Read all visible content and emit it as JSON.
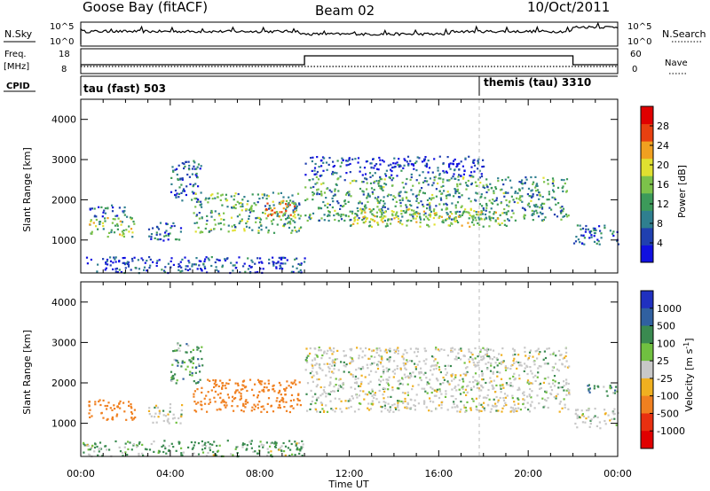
{
  "header": {
    "station": "Goose Bay (fitACF)",
    "beam": "Beam 02",
    "date": "10/Oct/2011"
  },
  "small_panels": {
    "nsky_label": "N.Sky",
    "nsearch_label": "N.Search",
    "nsky_ticks": [
      "10^5",
      "10^0"
    ],
    "nsearch_ticks": [
      "10^5",
      "10^0"
    ],
    "freq_label": "Freq.",
    "freq_unit": "[MHz]",
    "freq_ticks": [
      "18",
      "8"
    ],
    "nave_label": "Nave",
    "nave_ticks": [
      "60",
      "0"
    ],
    "cpid_label": "CPID",
    "cpid_modes": [
      {
        "label": "tau (fast) 503",
        "start_hour": 0,
        "end_hour": 18
      },
      {
        "label": "themis (tau) 3310",
        "start_hour": 18,
        "end_hour": 24
      }
    ]
  },
  "chart_data": [
    {
      "type": "heatmap",
      "title": "",
      "ylabel": "Slant Range [km]",
      "xlabel": "",
      "ylim": [
        180,
        4500
      ],
      "xlim": [
        0,
        24
      ],
      "yticks": [
        "1000",
        "2000",
        "3000",
        "4000"
      ],
      "colorbar": {
        "label": "Power [dB]",
        "range": [
          0,
          32
        ],
        "ticks": [
          "4",
          "8",
          "12",
          "16",
          "20",
          "24",
          "28"
        ],
        "colors": [
          "#1010e0",
          "#2040b0",
          "#2f7f8f",
          "#3c9a5a",
          "#7cc24a",
          "#e0e030",
          "#f0a020",
          "#e84010",
          "#e00000"
        ]
      },
      "echo_regions": [
        {
          "x": [
            0.3,
            2.4
          ],
          "y": [
            1100,
            1600
          ],
          "level": 0.55
        },
        {
          "x": [
            0.3,
            2.0
          ],
          "y": [
            1600,
            1900
          ],
          "level": 0.25
        },
        {
          "x": [
            3.0,
            4.5
          ],
          "y": [
            1000,
            1500
          ],
          "level": 0.2
        },
        {
          "x": [
            4.0,
            5.4
          ],
          "y": [
            2000,
            3000
          ],
          "level": 0.25
        },
        {
          "x": [
            5.0,
            9.8
          ],
          "y": [
            1200,
            2200
          ],
          "level": 0.45
        },
        {
          "x": [
            8.2,
            9.6
          ],
          "y": [
            1600,
            2000
          ],
          "level": 0.85
        },
        {
          "x": [
            10.0,
            21.8
          ],
          "y": [
            1500,
            2600
          ],
          "level": 0.4
        },
        {
          "x": [
            12.0,
            19.0
          ],
          "y": [
            1350,
            1800
          ],
          "level": 0.6
        },
        {
          "x": [
            10.0,
            18.0
          ],
          "y": [
            2600,
            3100
          ],
          "level": 0.15
        },
        {
          "x": [
            22.0,
            24.0
          ],
          "y": [
            900,
            1400
          ],
          "level": 0.2
        },
        {
          "x": [
            0.0,
            10.0
          ],
          "y": [
            200,
            600
          ],
          "level": 0.15
        }
      ]
    },
    {
      "type": "heatmap",
      "title": "",
      "ylabel": "Slant Range [km]",
      "xlabel": "Time UT",
      "ylim": [
        180,
        4500
      ],
      "xlim": [
        0,
        24
      ],
      "yticks": [
        "1000",
        "2000",
        "3000",
        "4000"
      ],
      "xticks": [
        "00:00",
        "04:00",
        "08:00",
        "12:00",
        "16:00",
        "20:00",
        "00:00"
      ],
      "colorbar": {
        "label": "Velocity [m s^-1]",
        "ticks": [
          "1000",
          "500",
          "100",
          "25",
          "-25",
          "-100",
          "-500",
          "-1000"
        ],
        "colors": [
          "#2030c0",
          "#3060a0",
          "#3a8a50",
          "#70c040",
          "#c8c8c8",
          "#f0b020",
          "#f08020",
          "#e83010",
          "#e00000"
        ]
      },
      "echo_regions": [
        {
          "x": [
            0.3,
            2.4
          ],
          "y": [
            1100,
            1600
          ],
          "vel": -300
        },
        {
          "x": [
            3.0,
            4.5
          ],
          "y": [
            1000,
            1500
          ],
          "vel": 0
        },
        {
          "x": [
            4.0,
            5.4
          ],
          "y": [
            2000,
            3000
          ],
          "vel": 150
        },
        {
          "x": [
            5.0,
            9.8
          ],
          "y": [
            1300,
            2100
          ],
          "vel": -300
        },
        {
          "x": [
            10.0,
            21.8
          ],
          "y": [
            1300,
            2900
          ],
          "vel": 0
        },
        {
          "x": [
            22.0,
            24.0
          ],
          "y": [
            900,
            1400
          ],
          "vel": 0
        },
        {
          "x": [
            22.6,
            24.0
          ],
          "y": [
            1700,
            2000
          ],
          "vel": 150
        },
        {
          "x": [
            0.0,
            10.0
          ],
          "y": [
            200,
            600
          ],
          "vel": 100
        }
      ]
    }
  ]
}
